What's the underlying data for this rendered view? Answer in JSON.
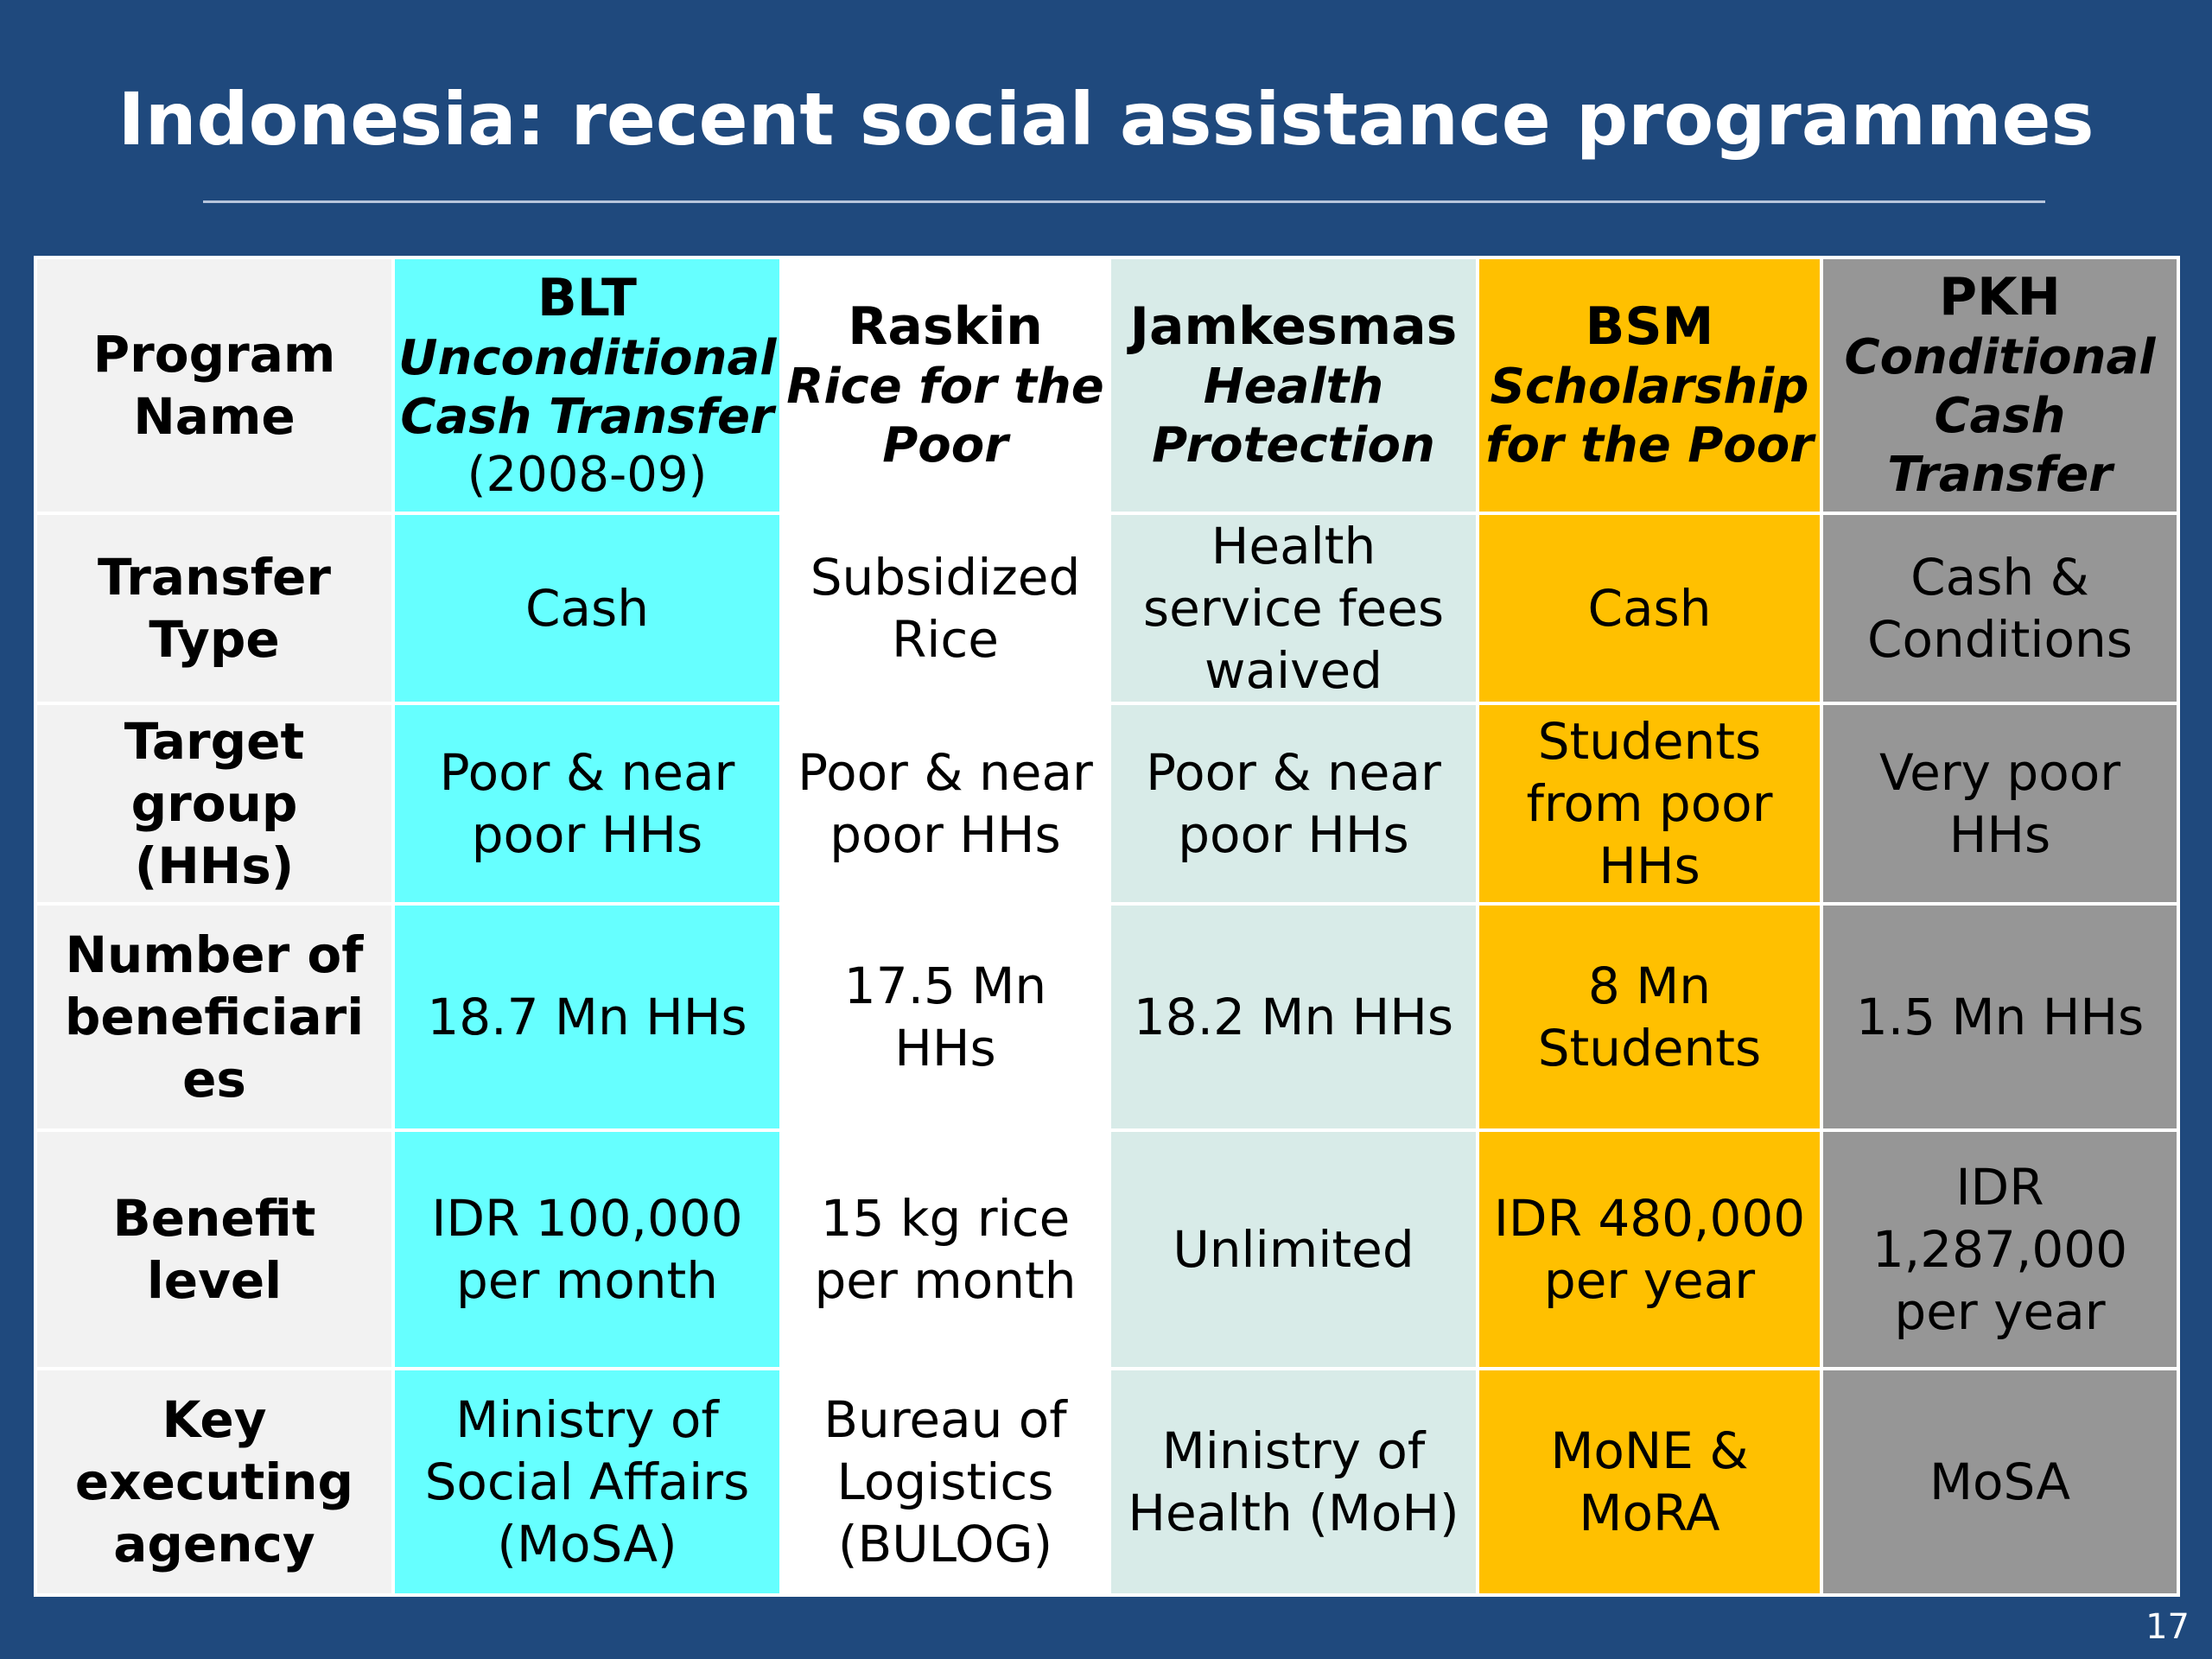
{
  "title": "Indonesia: recent social assistance programmes",
  "page_number": "17",
  "colors": {
    "background": "#1f497d",
    "blt": "#66ffff",
    "raskin": "#ffffff",
    "jamkesmas": "#d8ebe8",
    "bsm": "#ffc000",
    "pkh": "#969696",
    "row_header": "#f2f2f2"
  },
  "table": {
    "header_label": [
      "Program",
      "Name"
    ],
    "programs": [
      {
        "code": "BLT",
        "name_lines": [
          "Unconditional",
          "Cash Transfer"
        ],
        "years": "(2008-09)"
      },
      {
        "code": "Raskin",
        "name_lines": [
          "Rice for the",
          "Poor"
        ],
        "years": ""
      },
      {
        "code": "Jamkesmas",
        "name_lines": [
          "Health",
          "Protection"
        ],
        "years": ""
      },
      {
        "code": "BSM",
        "name_lines": [
          "Scholarship",
          "for the Poor"
        ],
        "years": ""
      },
      {
        "code": "PKH",
        "name_lines": [
          "Conditional",
          "Cash",
          "Transfer"
        ],
        "years": ""
      }
    ],
    "rows": [
      {
        "label": [
          "Transfer",
          "Type"
        ],
        "cells": [
          [
            "Cash"
          ],
          [
            "Subsidized",
            "Rice"
          ],
          [
            "Health",
            "service fees",
            "waived"
          ],
          [
            "Cash"
          ],
          [
            "Cash &",
            "Conditions"
          ]
        ]
      },
      {
        "label": [
          "Target",
          "group",
          "(HHs)"
        ],
        "cells": [
          [
            "Poor & near",
            "poor HHs"
          ],
          [
            "Poor & near",
            "poor HHs"
          ],
          [
            "Poor & near",
            "poor HHs"
          ],
          [
            "Students",
            "from poor",
            "HHs"
          ],
          [
            "Very poor",
            "HHs"
          ]
        ]
      },
      {
        "label": [
          "Number of",
          "beneficiari",
          "es"
        ],
        "cells": [
          [
            "18.7 Mn HHs"
          ],
          [
            "17.5 Mn",
            "HHs"
          ],
          [
            "18.2 Mn HHs"
          ],
          [
            "8 Mn",
            "Students"
          ],
          [
            "1.5 Mn HHs"
          ]
        ]
      },
      {
        "label": [
          "Benefit",
          "level"
        ],
        "cells": [
          [
            "IDR 100,000",
            "per month"
          ],
          [
            "15 kg rice",
            "per month"
          ],
          [
            "Unlimited"
          ],
          [
            "IDR 480,000",
            "per year"
          ],
          [
            "IDR",
            "1,287,000",
            "per year"
          ]
        ]
      },
      {
        "label": [
          "Key",
          "executing",
          "agency"
        ],
        "cells": [
          [
            "Ministry of",
            "Social Affairs",
            "(MoSA)"
          ],
          [
            "Bureau of",
            "Logistics",
            "(BULOG)"
          ],
          [
            "Ministry of",
            "Health (MoH)"
          ],
          [
            "MoNE &",
            "MoRA"
          ],
          [
            "MoSA"
          ]
        ]
      }
    ]
  }
}
